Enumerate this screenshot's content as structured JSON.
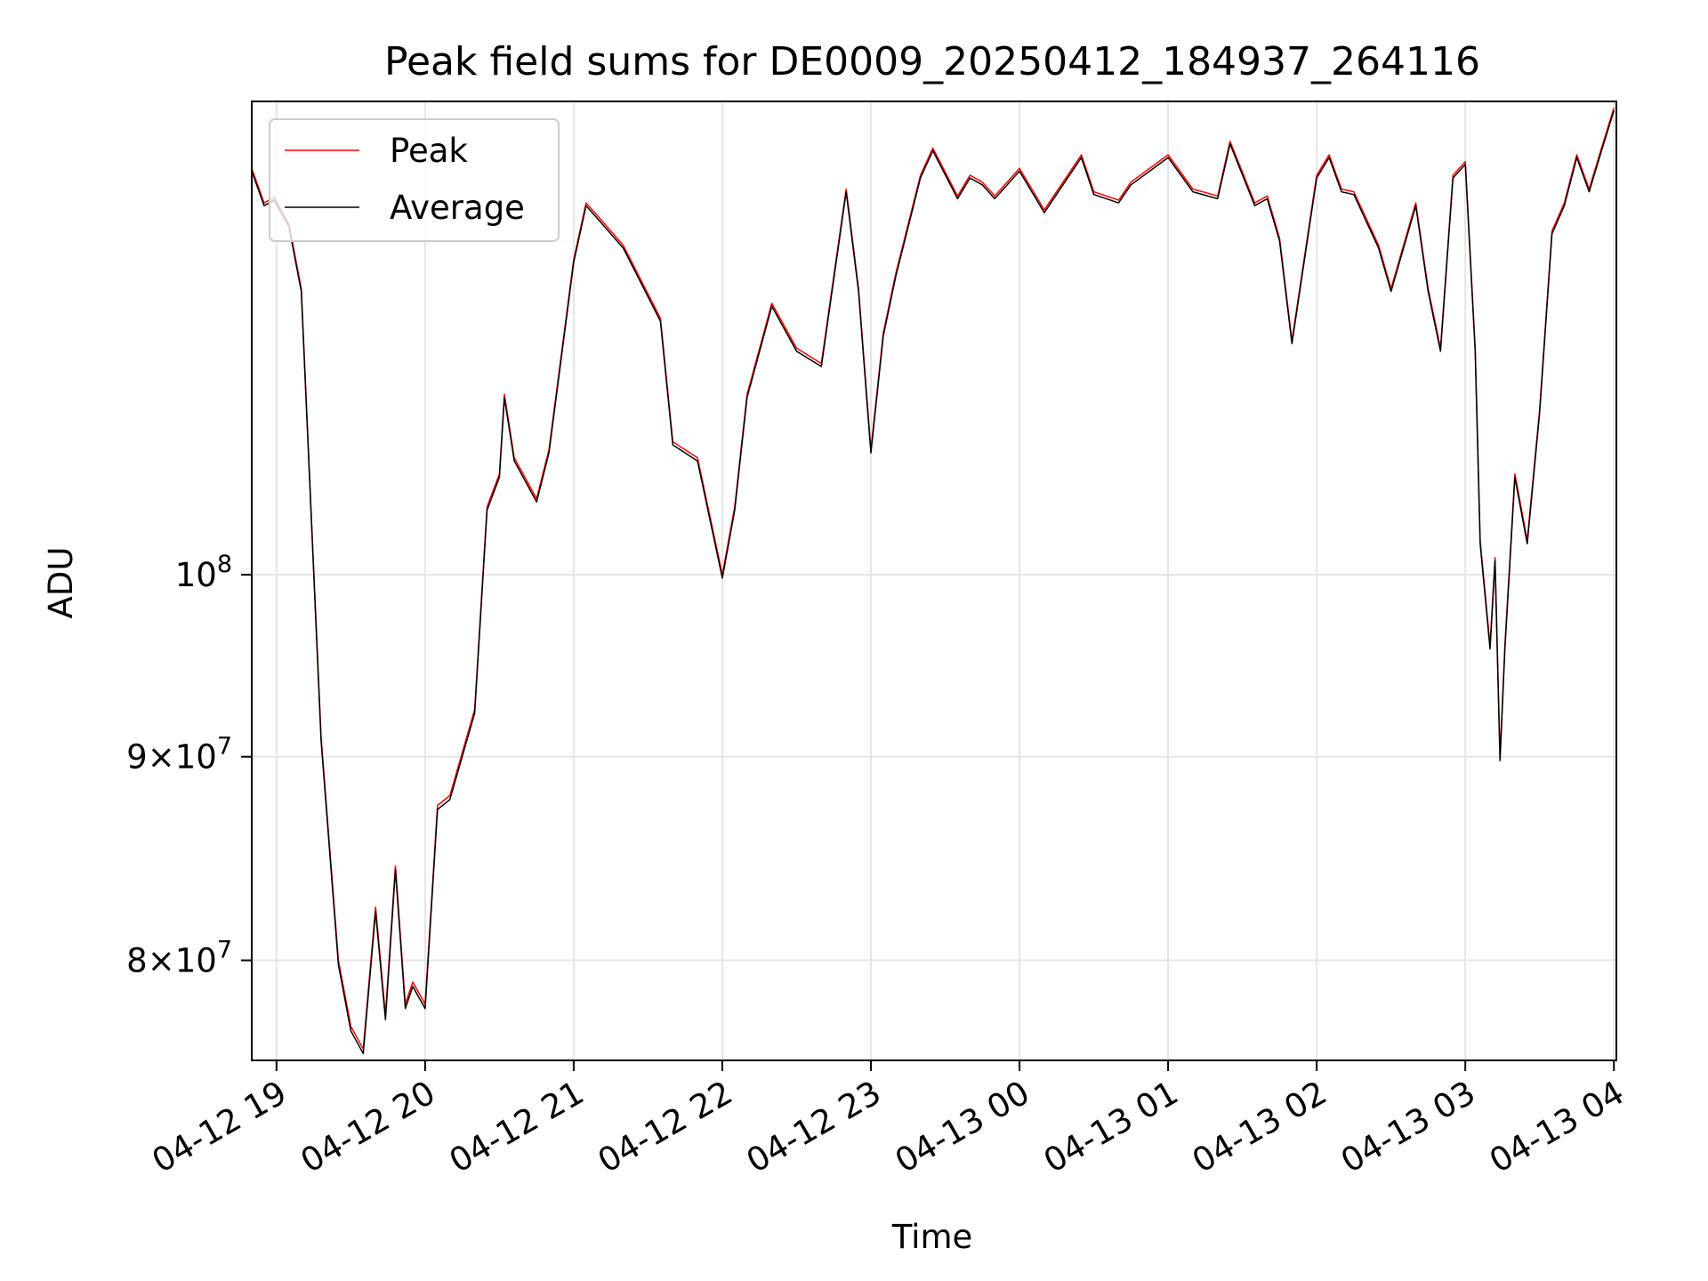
{
  "chart_data": {
    "type": "line",
    "title": "Peak field sums for DE0009_20250412_184937_264116",
    "xlabel": "Time",
    "ylabel": "ADU",
    "y_scale": "log",
    "grid": true,
    "legend_position": "top-left",
    "xlim": [
      "2025-04-12 18:50",
      "2025-04-13 04:01"
    ],
    "ylim": [
      75500000,
      131500000
    ],
    "x_ticks": [
      {
        "t": "2025-04-12 19:00",
        "label": "04-12 19"
      },
      {
        "t": "2025-04-12 20:00",
        "label": "04-12 20"
      },
      {
        "t": "2025-04-12 21:00",
        "label": "04-12 21"
      },
      {
        "t": "2025-04-12 22:00",
        "label": "04-12 22"
      },
      {
        "t": "2025-04-12 23:00",
        "label": "04-12 23"
      },
      {
        "t": "2025-04-13 00:00",
        "label": "04-13 00"
      },
      {
        "t": "2025-04-13 01:00",
        "label": "04-13 01"
      },
      {
        "t": "2025-04-13 02:00",
        "label": "04-13 02"
      },
      {
        "t": "2025-04-13 03:00",
        "label": "04-13 03"
      },
      {
        "t": "2025-04-13 04:00",
        "label": "04-13 04"
      }
    ],
    "y_ticks": [
      {
        "v": 80000000,
        "mantissa": "8",
        "base": "10",
        "exp": "7"
      },
      {
        "v": 90000000,
        "mantissa": "9",
        "base": "10",
        "exp": "7"
      },
      {
        "v": 100000000,
        "mantissa": "",
        "base": "10",
        "exp": "8"
      }
    ],
    "series": [
      {
        "name": "Peak",
        "color": "#ff0000",
        "x": [
          "2025-04-12 18:50",
          "2025-04-12 18:55",
          "2025-04-12 18:59",
          "2025-04-12 19:05",
          "2025-04-12 19:10",
          "2025-04-12 19:18",
          "2025-04-12 19:25",
          "2025-04-12 19:30",
          "2025-04-12 19:35",
          "2025-04-12 19:40",
          "2025-04-12 19:44",
          "2025-04-12 19:48",
          "2025-04-12 19:52",
          "2025-04-12 19:55",
          "2025-04-12 20:00",
          "2025-04-12 20:05",
          "2025-04-12 20:10",
          "2025-04-12 20:20",
          "2025-04-12 20:25",
          "2025-04-12 20:30",
          "2025-04-12 20:32",
          "2025-04-12 20:36",
          "2025-04-12 20:45",
          "2025-04-12 20:50",
          "2025-04-12 21:00",
          "2025-04-12 21:05",
          "2025-04-12 21:10",
          "2025-04-12 21:20",
          "2025-04-12 21:35",
          "2025-04-12 21:40",
          "2025-04-12 21:50",
          "2025-04-12 22:00",
          "2025-04-12 22:05",
          "2025-04-12 22:10",
          "2025-04-12 22:20",
          "2025-04-12 22:30",
          "2025-04-12 22:40",
          "2025-04-12 22:50",
          "2025-04-12 22:55",
          "2025-04-12 23:00",
          "2025-04-12 23:05",
          "2025-04-12 23:10",
          "2025-04-12 23:20",
          "2025-04-12 23:25",
          "2025-04-12 23:35",
          "2025-04-12 23:40",
          "2025-04-12 23:45",
          "2025-04-12 23:50",
          "2025-04-13 00:00",
          "2025-04-13 00:10",
          "2025-04-13 00:25",
          "2025-04-13 00:30",
          "2025-04-13 00:40",
          "2025-04-13 00:45",
          "2025-04-13 01:00",
          "2025-04-13 01:10",
          "2025-04-13 01:20",
          "2025-04-13 01:25",
          "2025-04-13 01:35",
          "2025-04-13 01:40",
          "2025-04-13 01:45",
          "2025-04-13 01:50",
          "2025-04-13 02:00",
          "2025-04-13 02:05",
          "2025-04-13 02:10",
          "2025-04-13 02:15",
          "2025-04-13 02:25",
          "2025-04-13 02:30",
          "2025-04-13 02:40",
          "2025-04-13 02:45",
          "2025-04-13 02:50",
          "2025-04-13 02:55",
          "2025-04-13 03:00",
          "2025-04-13 03:04",
          "2025-04-13 03:06",
          "2025-04-13 03:10",
          "2025-04-13 03:12",
          "2025-04-13 03:14",
          "2025-04-13 03:16",
          "2025-04-13 03:20",
          "2025-04-13 03:25",
          "2025-04-13 03:30",
          "2025-04-13 03:35",
          "2025-04-13 03:40",
          "2025-04-13 03:45",
          "2025-04-13 03:50",
          "2025-04-13 03:55",
          "2025-04-13 04:00"
        ],
        "y": [
          126500000,
          124000000,
          124400000,
          122500000,
          118000000,
          91000000,
          80000000,
          77000000,
          76000000,
          82500000,
          77500000,
          84500000,
          78000000,
          79000000,
          78000000,
          87500000,
          88000000,
          92500000,
          104000000,
          106000000,
          111000000,
          107000000,
          104500000,
          107500000,
          120000000,
          124000000,
          123000000,
          121000000,
          116000000,
          108000000,
          107000000,
          100000000,
          104000000,
          111000000,
          117000000,
          114000000,
          113000000,
          125000000,
          118000000,
          107500000,
          115000000,
          119000000,
          126000000,
          128000000,
          124500000,
          126000000,
          125500000,
          124500000,
          126500000,
          123500000,
          127500000,
          124800000,
          124200000,
          125500000,
          127500000,
          125000000,
          124500000,
          128500000,
          124000000,
          124500000,
          121500000,
          114500000,
          126000000,
          127500000,
          125000000,
          124800000,
          121000000,
          118000000,
          124000000,
          118000000,
          114000000,
          126000000,
          127000000,
          114000000,
          102000000,
          96000000,
          101000000,
          90000000,
          96000000,
          106000000,
          102000000,
          110000000,
          122000000,
          124000000,
          127500000,
          125000000,
          128000000,
          131000000
        ]
      },
      {
        "name": "Average",
        "color": "#000000",
        "x": [
          "2025-04-12 18:50",
          "2025-04-12 18:55",
          "2025-04-12 18:59",
          "2025-04-12 19:05",
          "2025-04-12 19:10",
          "2025-04-12 19:18",
          "2025-04-12 19:25",
          "2025-04-12 19:30",
          "2025-04-12 19:35",
          "2025-04-12 19:40",
          "2025-04-12 19:44",
          "2025-04-12 19:48",
          "2025-04-12 19:52",
          "2025-04-12 19:55",
          "2025-04-12 20:00",
          "2025-04-12 20:05",
          "2025-04-12 20:10",
          "2025-04-12 20:20",
          "2025-04-12 20:25",
          "2025-04-12 20:30",
          "2025-04-12 20:32",
          "2025-04-12 20:36",
          "2025-04-12 20:45",
          "2025-04-12 20:50",
          "2025-04-12 21:00",
          "2025-04-12 21:05",
          "2025-04-12 21:10",
          "2025-04-12 21:20",
          "2025-04-12 21:35",
          "2025-04-12 21:40",
          "2025-04-12 21:50",
          "2025-04-12 22:00",
          "2025-04-12 22:05",
          "2025-04-12 22:10",
          "2025-04-12 22:20",
          "2025-04-12 22:30",
          "2025-04-12 22:40",
          "2025-04-12 22:50",
          "2025-04-12 22:55",
          "2025-04-12 23:00",
          "2025-04-12 23:05",
          "2025-04-12 23:10",
          "2025-04-12 23:20",
          "2025-04-12 23:25",
          "2025-04-12 23:35",
          "2025-04-12 23:40",
          "2025-04-12 23:45",
          "2025-04-12 23:50",
          "2025-04-13 00:00",
          "2025-04-13 00:10",
          "2025-04-13 00:25",
          "2025-04-13 00:30",
          "2025-04-13 00:40",
          "2025-04-13 00:45",
          "2025-04-13 01:00",
          "2025-04-13 01:10",
          "2025-04-13 01:20",
          "2025-04-13 01:25",
          "2025-04-13 01:35",
          "2025-04-13 01:40",
          "2025-04-13 01:45",
          "2025-04-13 01:50",
          "2025-04-13 02:00",
          "2025-04-13 02:05",
          "2025-04-13 02:10",
          "2025-04-13 02:15",
          "2025-04-13 02:25",
          "2025-04-13 02:30",
          "2025-04-13 02:40",
          "2025-04-13 02:45",
          "2025-04-13 02:50",
          "2025-04-13 02:55",
          "2025-04-13 03:00",
          "2025-04-13 03:04",
          "2025-04-13 03:06",
          "2025-04-13 03:10",
          "2025-04-13 03:12",
          "2025-04-13 03:14",
          "2025-04-13 03:16",
          "2025-04-13 03:20",
          "2025-04-13 03:25",
          "2025-04-13 03:30",
          "2025-04-13 03:35",
          "2025-04-13 03:40",
          "2025-04-13 03:45",
          "2025-04-13 03:50",
          "2025-04-13 03:55",
          "2025-04-13 04:00"
        ],
        "y": [
          126300000,
          123800000,
          124200000,
          122300000,
          117800000,
          90800000,
          79800000,
          76800000,
          75800000,
          82300000,
          77300000,
          84300000,
          77800000,
          78800000,
          77800000,
          87300000,
          87800000,
          92300000,
          103800000,
          105800000,
          110800000,
          106800000,
          104300000,
          107300000,
          119800000,
          123800000,
          122800000,
          120800000,
          115800000,
          107800000,
          106800000,
          99800000,
          103800000,
          110800000,
          116800000,
          113800000,
          112800000,
          124800000,
          117800000,
          107300000,
          114800000,
          118800000,
          125800000,
          127800000,
          124300000,
          125800000,
          125300000,
          124300000,
          126300000,
          123300000,
          127300000,
          124600000,
          124000000,
          125300000,
          127300000,
          124800000,
          124300000,
          128300000,
          123800000,
          124300000,
          121300000,
          114300000,
          125800000,
          127300000,
          124800000,
          124600000,
          120800000,
          117800000,
          123800000,
          117800000,
          113800000,
          125800000,
          126800000,
          113800000,
          101800000,
          95800000,
          100800000,
          89800000,
          95800000,
          105800000,
          101800000,
          109800000,
          121800000,
          123800000,
          127300000,
          124800000,
          127800000,
          130800000
        ]
      }
    ]
  }
}
